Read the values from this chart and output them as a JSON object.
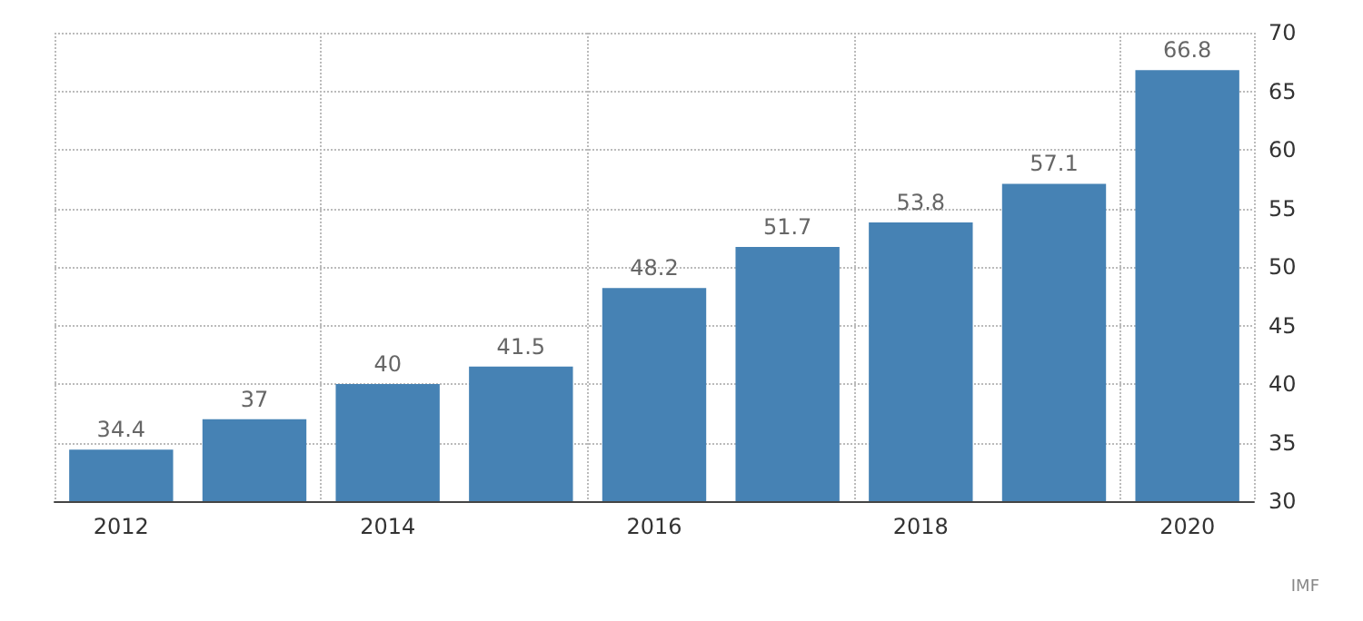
{
  "chart_data": {
    "type": "bar",
    "categories": [
      "2012",
      null,
      "2014",
      null,
      "2016",
      null,
      "2018",
      null,
      "2020"
    ],
    "values": [
      34.4,
      37,
      40,
      41.5,
      48.2,
      51.7,
      53.8,
      57.1,
      66.8
    ],
    "color": "#4682b4",
    "ylim": [
      30,
      70
    ],
    "yticks": [
      30,
      35,
      40,
      45,
      50,
      55,
      60,
      65,
      70
    ],
    "grid": true,
    "data_labels": true,
    "annotations": [
      "IMF"
    ]
  }
}
